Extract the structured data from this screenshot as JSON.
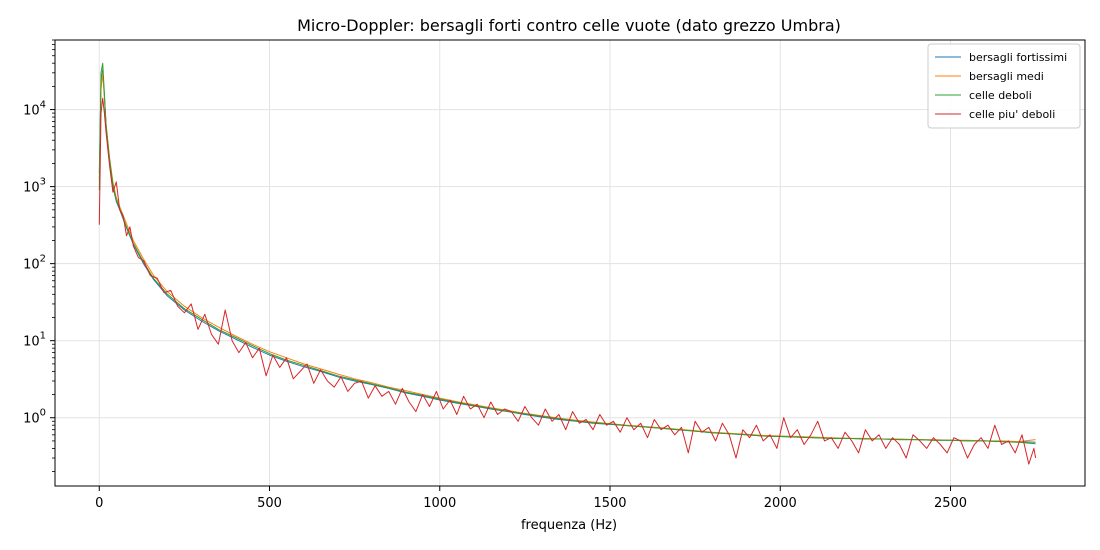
{
  "chart_data": {
    "type": "line",
    "title": "Micro-Doppler: bersagli forti contro celle vuote (dato grezzo Umbra)",
    "xlabel": "frequenza (Hz)",
    "ylabel": "",
    "xlim": [
      -130,
      2895
    ],
    "ylim": [
      0.13,
      80000
    ],
    "xscale": "linear",
    "yscale": "log",
    "grid": true,
    "legend_position": "top-right",
    "x_ticks": [
      {
        "value": 0,
        "label": "0"
      },
      {
        "value": 500,
        "label": "500"
      },
      {
        "value": 1000,
        "label": "1000"
      },
      {
        "value": 1500,
        "label": "1500"
      },
      {
        "value": 2000,
        "label": "2000"
      },
      {
        "value": 2500,
        "label": "2500"
      }
    ],
    "y_ticks": [
      {
        "value": 1,
        "base": "10",
        "exp": "0"
      },
      {
        "value": 10,
        "base": "10",
        "exp": "1"
      },
      {
        "value": 100,
        "base": "10",
        "exp": "2"
      },
      {
        "value": 1000,
        "base": "10",
        "exp": "3"
      },
      {
        "value": 10000,
        "base": "10",
        "exp": "4"
      }
    ],
    "series": [
      {
        "name": "bersagli fortissimi",
        "color": "#1f77b4",
        "x": [
          0,
          5,
          10,
          15,
          20,
          30,
          40,
          50,
          60,
          80,
          100,
          130,
          160,
          200,
          250,
          300,
          350,
          400,
          450,
          500,
          550,
          600,
          650,
          700,
          750,
          800,
          850,
          900,
          950,
          1000,
          1050,
          1100,
          1150,
          1200,
          1250,
          1300,
          1350,
          1400,
          1450,
          1500,
          1550,
          1600,
          1650,
          1700,
          1750,
          1800,
          1850,
          1900,
          1950,
          2000,
          2050,
          2100,
          2150,
          2200,
          2250,
          2300,
          2350,
          2400,
          2450,
          2500,
          2550,
          2600,
          2650,
          2700,
          2750
        ],
        "y": [
          1500,
          22000,
          33000,
          15000,
          6000,
          2200,
          1000,
          640,
          500,
          290,
          180,
          100,
          62,
          38,
          25,
          18,
          13.5,
          10.5,
          8.2,
          6.5,
          5.4,
          4.6,
          4.0,
          3.4,
          3.0,
          2.7,
          2.4,
          2.1,
          1.9,
          1.7,
          1.55,
          1.42,
          1.3,
          1.2,
          1.1,
          1.02,
          0.95,
          0.9,
          0.85,
          0.82,
          0.79,
          0.76,
          0.73,
          0.7,
          0.67,
          0.64,
          0.62,
          0.6,
          0.58,
          0.57,
          0.56,
          0.55,
          0.54,
          0.54,
          0.53,
          0.53,
          0.52,
          0.52,
          0.51,
          0.51,
          0.5,
          0.5,
          0.49,
          0.49,
          0.48
        ]
      },
      {
        "name": "bersagli medi",
        "color": "#ff7f0e",
        "x": [
          0,
          5,
          10,
          15,
          20,
          30,
          40,
          50,
          60,
          80,
          100,
          130,
          160,
          200,
          250,
          300,
          350,
          400,
          450,
          500,
          550,
          600,
          650,
          700,
          750,
          800,
          850,
          900,
          950,
          1000,
          1050,
          1100,
          1150,
          1200,
          1250,
          1300,
          1350,
          1400,
          1450,
          1500,
          1550,
          1600,
          1650,
          1700,
          1750,
          1800,
          1850,
          1900,
          1950,
          2000,
          2050,
          2100,
          2150,
          2200,
          2250,
          2300,
          2350,
          2400,
          2450,
          2500,
          2550,
          2600,
          2650,
          2700,
          2750
        ],
        "y": [
          1200,
          18000,
          30000,
          14000,
          6500,
          2400,
          1150,
          720,
          550,
          330,
          200,
          115,
          70,
          43,
          28,
          20,
          15,
          11.5,
          9.0,
          7.2,
          6.0,
          5.0,
          4.3,
          3.7,
          3.2,
          2.85,
          2.5,
          2.25,
          2.0,
          1.8,
          1.62,
          1.48,
          1.35,
          1.24,
          1.14,
          1.06,
          0.99,
          0.93,
          0.88,
          0.84,
          0.8,
          0.77,
          0.74,
          0.71,
          0.68,
          0.65,
          0.63,
          0.61,
          0.59,
          0.58,
          0.57,
          0.56,
          0.55,
          0.54,
          0.54,
          0.53,
          0.53,
          0.52,
          0.52,
          0.51,
          0.51,
          0.5,
          0.5,
          0.49,
          0.52
        ]
      },
      {
        "name": "celle deboli",
        "color": "#2ca02c",
        "x": [
          0,
          5,
          10,
          15,
          20,
          30,
          40,
          50,
          60,
          80,
          100,
          130,
          160,
          200,
          250,
          300,
          350,
          400,
          450,
          500,
          550,
          600,
          650,
          700,
          750,
          800,
          850,
          900,
          950,
          1000,
          1050,
          1100,
          1150,
          1200,
          1250,
          1300,
          1350,
          1400,
          1450,
          1500,
          1550,
          1600,
          1650,
          1700,
          1750,
          1800,
          1850,
          1900,
          1950,
          2000,
          2050,
          2100,
          2150,
          2200,
          2250,
          2300,
          2350,
          2400,
          2450,
          2500,
          2550,
          2600,
          2650,
          2700,
          2750
        ],
        "y": [
          900,
          30000,
          40000,
          16000,
          6200,
          2300,
          1050,
          670,
          520,
          300,
          185,
          105,
          64,
          40,
          26,
          19,
          14,
          11,
          8.6,
          6.8,
          5.6,
          4.8,
          4.1,
          3.5,
          3.1,
          2.75,
          2.45,
          2.15,
          1.95,
          1.75,
          1.58,
          1.44,
          1.32,
          1.21,
          1.12,
          1.04,
          0.97,
          0.91,
          0.86,
          0.83,
          0.79,
          0.76,
          0.73,
          0.7,
          0.67,
          0.64,
          0.62,
          0.6,
          0.58,
          0.57,
          0.56,
          0.55,
          0.54,
          0.54,
          0.53,
          0.53,
          0.52,
          0.52,
          0.51,
          0.51,
          0.5,
          0.5,
          0.49,
          0.48,
          0.46
        ]
      },
      {
        "name": "celle piu' deboli",
        "color": "#d62728",
        "x": [
          0,
          5,
          10,
          15,
          20,
          30,
          40,
          50,
          60,
          70,
          80,
          90,
          100,
          115,
          130,
          150,
          170,
          190,
          210,
          230,
          250,
          270,
          290,
          310,
          330,
          350,
          370,
          390,
          410,
          430,
          450,
          470,
          490,
          510,
          530,
          550,
          570,
          590,
          610,
          630,
          650,
          670,
          690,
          710,
          730,
          750,
          770,
          790,
          810,
          830,
          850,
          870,
          890,
          910,
          930,
          950,
          970,
          990,
          1010,
          1030,
          1050,
          1070,
          1090,
          1110,
          1130,
          1150,
          1170,
          1190,
          1210,
          1230,
          1250,
          1270,
          1290,
          1310,
          1330,
          1350,
          1370,
          1390,
          1410,
          1430,
          1450,
          1470,
          1490,
          1510,
          1530,
          1550,
          1570,
          1590,
          1610,
          1630,
          1650,
          1670,
          1690,
          1710,
          1730,
          1750,
          1770,
          1790,
          1810,
          1830,
          1850,
          1870,
          1890,
          1910,
          1930,
          1950,
          1970,
          1990,
          2010,
          2030,
          2050,
          2070,
          2090,
          2110,
          2130,
          2150,
          2170,
          2190,
          2210,
          2230,
          2250,
          2270,
          2290,
          2310,
          2330,
          2350,
          2370,
          2390,
          2410,
          2430,
          2450,
          2470,
          2490,
          2510,
          2530,
          2550,
          2570,
          2590,
          2610,
          2630,
          2650,
          2670,
          2690,
          2710,
          2730,
          2745,
          2750
        ],
        "y": [
          320,
          9000,
          14000,
          9000,
          5000,
          1900,
          850,
          1150,
          500,
          420,
          230,
          300,
          170,
          120,
          110,
          70,
          65,
          42,
          45,
          28,
          23,
          30,
          14,
          22,
          12,
          9,
          25,
          10,
          7,
          9.5,
          6,
          8,
          3.5,
          6.5,
          4.5,
          6,
          3.2,
          4,
          5,
          2.8,
          4.2,
          3,
          2.5,
          3.4,
          2.2,
          2.8,
          3,
          1.8,
          2.6,
          1.9,
          2.2,
          1.5,
          2.4,
          1.6,
          1.2,
          2.0,
          1.4,
          2.2,
          1.3,
          1.7,
          1.1,
          1.9,
          1.3,
          1.5,
          1.0,
          1.6,
          1.1,
          1.3,
          1.2,
          0.9,
          1.4,
          1.0,
          0.8,
          1.3,
          0.9,
          1.1,
          0.7,
          1.2,
          0.85,
          0.95,
          0.7,
          1.1,
          0.8,
          0.9,
          0.65,
          1.0,
          0.7,
          0.85,
          0.55,
          0.95,
          0.7,
          0.8,
          0.6,
          0.75,
          0.35,
          0.9,
          0.65,
          0.75,
          0.5,
          0.85,
          0.6,
          0.3,
          0.7,
          0.55,
          0.8,
          0.5,
          0.6,
          0.4,
          1.0,
          0.55,
          0.7,
          0.45,
          0.6,
          0.9,
          0.5,
          0.55,
          0.4,
          0.65,
          0.5,
          0.35,
          0.7,
          0.5,
          0.6,
          0.4,
          0.55,
          0.45,
          0.3,
          0.6,
          0.5,
          0.4,
          0.55,
          0.45,
          0.35,
          0.55,
          0.5,
          0.3,
          0.45,
          0.55,
          0.4,
          0.8,
          0.45,
          0.5,
          0.35,
          0.6,
          0.25,
          0.4,
          0.3
        ]
      }
    ]
  }
}
